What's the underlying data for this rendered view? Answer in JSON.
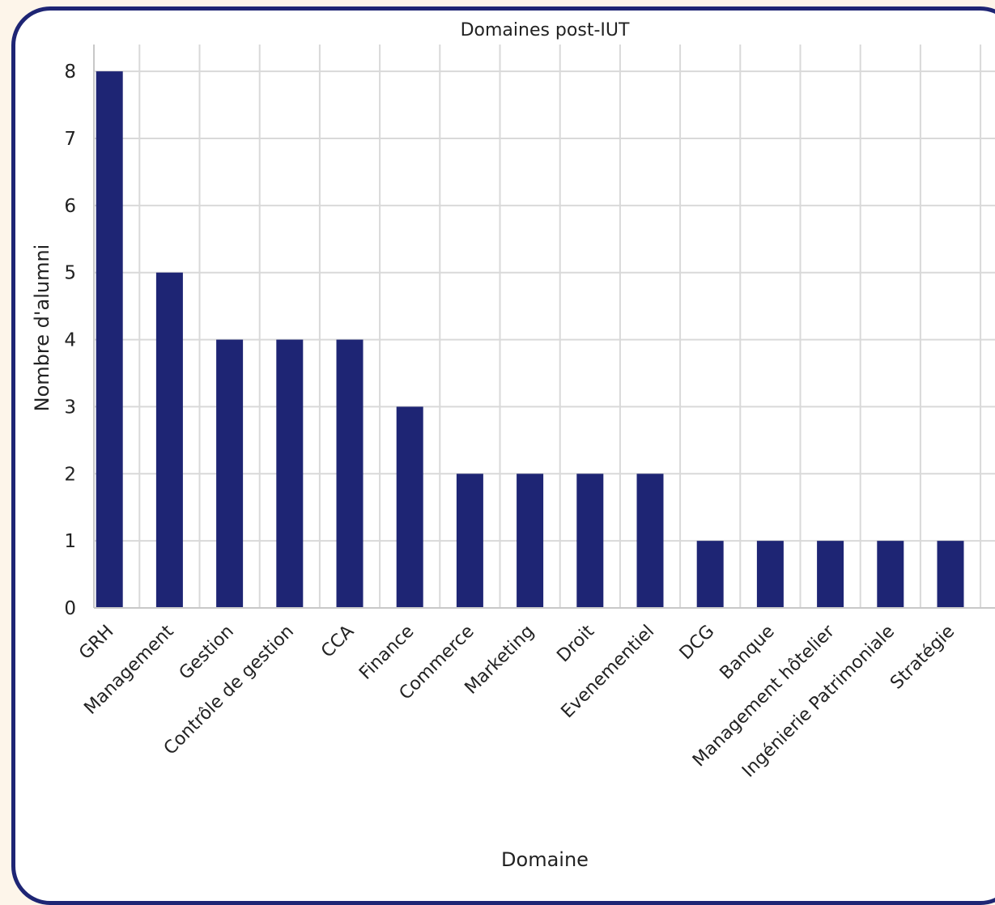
{
  "chart_data": {
    "type": "bar",
    "title": "Domaines post-IUT",
    "xlabel": "Domaine",
    "ylabel": "Nombre d'alumni",
    "categories": [
      "GRH",
      "Management",
      "Gestion",
      "Contrôle de gestion",
      "CCA",
      "Finance",
      "Commerce",
      "Marketing",
      "Droit",
      "Evenementiel",
      "DCG",
      "Banque",
      "Management hôtelier",
      "Ingénierie Patrimoniale",
      "Stratégie"
    ],
    "values": [
      8,
      5,
      4,
      4,
      4,
      3,
      2,
      2,
      2,
      2,
      1,
      1,
      1,
      1,
      1
    ],
    "yticks": [
      0,
      1,
      2,
      3,
      4,
      5,
      6,
      7,
      8
    ],
    "ylim": [
      0,
      8.4
    ],
    "grid": true,
    "colors": {
      "bar": "#1e2574",
      "frame": "#1e2574",
      "grid": "#d9d9d9",
      "background": "#fdf5ea"
    }
  }
}
